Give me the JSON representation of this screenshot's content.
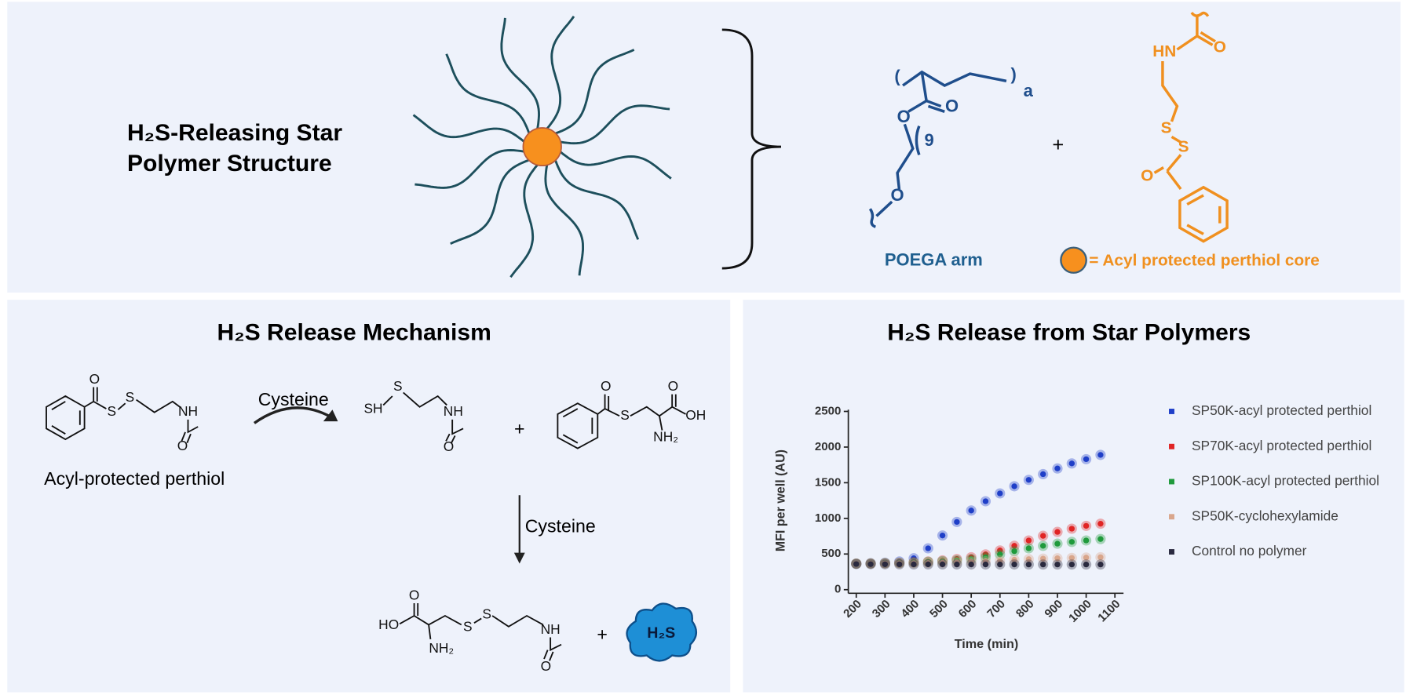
{
  "structure": {
    "title_lines": [
      "H₂S-Releasing Star",
      "Polymer Structure"
    ],
    "arm_atoms": [
      "O",
      "O",
      "O",
      "a",
      "9",
      "(",
      ")"
    ],
    "arm_label": "POEGA arm",
    "plus": "+",
    "core_atoms": [
      "HN",
      "O",
      "S",
      "S",
      "O"
    ],
    "core_label": "= Acyl protected perthiol core"
  },
  "mechanism": {
    "title": "H₂S Release Mechanism",
    "reactant_atoms": [
      "O",
      "S",
      "S",
      "NH",
      "O"
    ],
    "reactant_label": "Acyl-protected perthiol",
    "reagent": "Cysteine",
    "product_atoms": [
      "SH",
      "S",
      "NH",
      "O"
    ],
    "plus": "+",
    "thioester_atoms": [
      "O",
      "S",
      "O",
      "OH",
      "NH₂"
    ],
    "reagent_2": "Cysteine",
    "final_atoms": [
      "O",
      "HO",
      "NH₂",
      "S",
      "S",
      "NH",
      "O"
    ],
    "plus_2": "+",
    "gas": "H₂S"
  },
  "chart_data": {
    "type": "scatter",
    "title": "H₂S Release from Star Polymers",
    "x_label": "Time (min)",
    "y_label": "MFI per well (AU)",
    "x": [
      200,
      250,
      300,
      350,
      400,
      450,
      500,
      550,
      600,
      650,
      700,
      750,
      800,
      850,
      900,
      950,
      1000,
      1050
    ],
    "series": [
      {
        "name": "SP50K-acyl protected perthiol",
        "color": "#1f3fc8",
        "values": [
          365,
          370,
          378,
          395,
          440,
          580,
          760,
          950,
          1110,
          1240,
          1350,
          1450,
          1540,
          1620,
          1700,
          1770,
          1830,
          1890
        ]
      },
      {
        "name": "SP70K-acyl protected perthiol",
        "color": "#e02424",
        "values": [
          365,
          368,
          372,
          378,
          385,
          395,
          410,
          430,
          455,
          495,
          550,
          615,
          690,
          755,
          810,
          855,
          895,
          925
        ]
      },
      {
        "name": "SP100K-acyl protected perthiol",
        "color": "#1f9a3c",
        "values": [
          365,
          368,
          372,
          376,
          382,
          390,
          400,
          412,
          428,
          455,
          495,
          540,
          580,
          615,
          645,
          670,
          690,
          710
        ]
      },
      {
        "name": "SP50K-cyclohexylamide",
        "color": "#d9a68c",
        "values": [
          365,
          366,
          368,
          370,
          372,
          375,
          380,
          385,
          392,
          400,
          410,
          420,
          428,
          435,
          440,
          445,
          450,
          455
        ]
      },
      {
        "name": "Control no polymer",
        "color": "#2a2a40",
        "values": [
          360,
          358,
          357,
          356,
          355,
          355,
          355,
          354,
          354,
          354,
          354,
          354,
          353,
          353,
          353,
          353,
          353,
          353
        ]
      }
    ],
    "xlim": [
      185,
      1130
    ],
    "ylim": [
      0,
      2500
    ],
    "xticks": [
      200,
      300,
      400,
      500,
      600,
      700,
      800,
      900,
      1000,
      1100
    ],
    "yticks": [
      0,
      500,
      1000,
      1500,
      2000,
      2500
    ],
    "grid": false
  }
}
